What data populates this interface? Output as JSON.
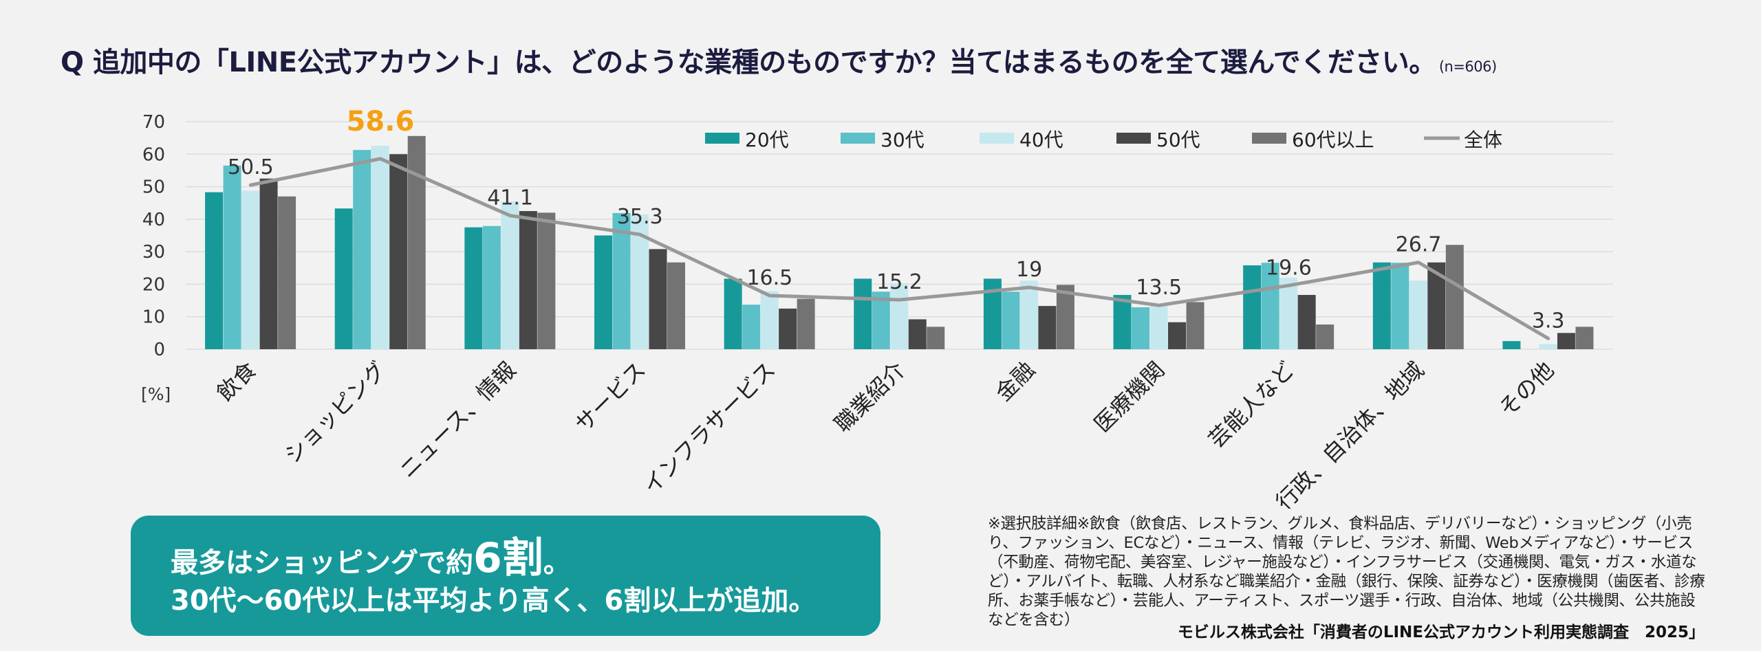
{
  "title": {
    "question": "Q 追加中の「LINE公式アカウント」は、どのような業種のものですか？当てはまるものを全て選んでください。",
    "n": "(n=606)"
  },
  "chart_data": {
    "type": "bar",
    "categories": [
      "飲食",
      "ショッピング",
      "ニュース、情報",
      "サービス",
      "インフラサービス",
      "職業紹介",
      "金融",
      "医療機関",
      "芸能人など",
      "行政、自治体、地域",
      "その他"
    ],
    "series": [
      {
        "name": "20代",
        "color": "#17999a",
        "values": [
          48.3,
          43.3,
          37.5,
          35.0,
          21.7,
          21.7,
          21.7,
          16.7,
          25.8,
          26.7,
          2.5
        ]
      },
      {
        "name": "30代",
        "color": "#5bc0c8",
        "values": [
          56.5,
          61.3,
          37.9,
          41.9,
          13.7,
          17.7,
          17.7,
          12.9,
          26.6,
          26.6,
          0.0
        ]
      },
      {
        "name": "40代",
        "color": "#c5e8ee",
        "values": [
          48.8,
          62.6,
          45.5,
          41.5,
          17.9,
          20.3,
          21.1,
          13.8,
          22.0,
          21.1,
          1.6
        ]
      },
      {
        "name": "50代",
        "color": "#474747",
        "values": [
          52.5,
          60.0,
          42.5,
          30.8,
          12.5,
          9.2,
          13.3,
          8.3,
          16.7,
          26.7,
          5.0
        ]
      },
      {
        "name": "60代以上",
        "color": "#737373",
        "values": [
          47.0,
          65.6,
          42.0,
          26.7,
          15.5,
          6.9,
          19.8,
          14.5,
          7.6,
          32.1,
          6.9
        ]
      }
    ],
    "line": {
      "name": "全体",
      "color": "#999999",
      "values": [
        50.5,
        58.6,
        41.1,
        35.3,
        16.5,
        15.2,
        19,
        13.5,
        19.6,
        26.7,
        3.3
      ]
    },
    "highlight_index": 1,
    "highlight_color": "#f5a013",
    "ylim": [
      0,
      70
    ],
    "yticks": [
      0,
      10,
      20,
      30,
      40,
      50,
      60,
      70
    ],
    "ylabel": "[%]",
    "legend": "top-right",
    "grid": true
  },
  "summary": {
    "line1_a": "最多はショッピングで約",
    "line1_b": "6割",
    "line1_c": "。",
    "line2": "30代～60代以上は平均より高く、6割以上が追加。"
  },
  "note": "※選択肢詳細※飲食（飲食店、レストラン、グルメ、食料品店、デリバリーなど）・ショッピング（小売り、ファッション、ECなど）・ニュース、情報（テレビ、ラジオ、新聞、Webメディアなど）・サービス（不動産、荷物宅配、美容室、レジャー施設など）・インフラサービス（交通機関、電気・ガス・水道など）・アルバイト、転職、人材系など職業紹介・金融（銀行、保険、証券など）・医療機関（歯医者、診療所、お薬手帳など）・芸能人、アーティスト、スポーツ選手・行政、自治体、地域（公共機関、公共施設などを含む）",
  "credit": "モビルス株式会社「消費者のLINE公式アカウント利用実態調査　2025」"
}
